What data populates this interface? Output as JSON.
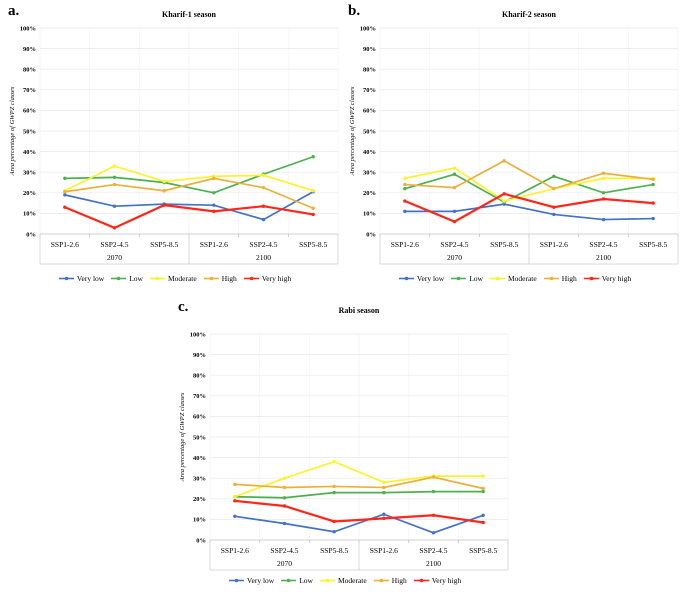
{
  "page": {
    "background": "#ffffff"
  },
  "colors": {
    "very_low": "#4472C4",
    "low": "#4CB050",
    "moderate": "#FFF12B",
    "high": "#E9B03C",
    "very_high": "#FF261A",
    "gridline": "#E8E8E8",
    "axis": "#C0C0C0"
  },
  "chart_data": [
    {
      "type": "line",
      "panel_label": "a.",
      "title": "Kharif-1 season",
      "ylabel": "Area percentage of GWPZ classes",
      "ylim": [
        0,
        100
      ],
      "ytick_step": 10,
      "ytick_suffix": "%",
      "grid": true,
      "legend_position": "bottom",
      "categories": [
        "SSP1-2.6",
        "SSP2-4.5",
        "SSP5-8.5",
        "SSP1-2.6",
        "SSP2-4.5",
        "SSP5-8.5"
      ],
      "group_labels": [
        "2070",
        "2100"
      ],
      "series": [
        {
          "name": "Very low",
          "color": "#4472C4",
          "values": [
            19,
            13.5,
            14.5,
            14,
            7,
            20.5
          ]
        },
        {
          "name": "Low",
          "color": "#4CB050",
          "values": [
            27,
            27.5,
            25,
            20,
            29,
            37.5
          ]
        },
        {
          "name": "Moderate",
          "color": "#FFF12B",
          "values": [
            21,
            33,
            25.5,
            28,
            28.5,
            21
          ]
        },
        {
          "name": "High",
          "color": "#E9B03C",
          "values": [
            20.5,
            24,
            21,
            27,
            22.5,
            12.5
          ]
        },
        {
          "name": "Very high",
          "color": "#FF261A",
          "values": [
            13,
            3,
            14,
            11,
            13.5,
            9.5
          ]
        }
      ]
    },
    {
      "type": "line",
      "panel_label": "b.",
      "title": "Kharif-2 season",
      "ylabel": "Area percentage of GWPZ classes",
      "ylim": [
        0,
        100
      ],
      "ytick_step": 10,
      "ytick_suffix": "%",
      "grid": true,
      "legend_position": "bottom",
      "categories": [
        "SSP1-2.6",
        "SSP2-4.5",
        "SSP5-8.5",
        "SSP1-2.6",
        "SSP2-4.5",
        "SSP5-8.5"
      ],
      "group_labels": [
        "2070",
        "2100"
      ],
      "series": [
        {
          "name": "Very low",
          "color": "#4472C4",
          "values": [
            11,
            11,
            14.5,
            9.5,
            7,
            7.5
          ]
        },
        {
          "name": "Low",
          "color": "#4CB050",
          "values": [
            22,
            29,
            15.5,
            28,
            20,
            24
          ]
        },
        {
          "name": "Moderate",
          "color": "#FFF12B",
          "values": [
            27,
            32,
            16,
            22,
            27,
            27
          ]
        },
        {
          "name": "High",
          "color": "#E9B03C",
          "values": [
            24,
            22.5,
            35.5,
            22,
            29.5,
            26.5
          ]
        },
        {
          "name": "Very high",
          "color": "#FF261A",
          "values": [
            16,
            6,
            19.5,
            13,
            17,
            15
          ]
        }
      ]
    },
    {
      "type": "line",
      "panel_label": "c.",
      "title": "Rabi season",
      "ylabel": "Area percentage of GWPZ classes",
      "ylim": [
        0,
        100
      ],
      "ytick_step": 10,
      "ytick_suffix": "%",
      "grid": true,
      "legend_position": "bottom",
      "categories": [
        "SSP1-2.6",
        "SSP2-4.5",
        "SSP5-8.5",
        "SSP1-2.6",
        "SSP2-4.5",
        "SSP5-8.5"
      ],
      "group_labels": [
        "2070",
        "2100"
      ],
      "series": [
        {
          "name": "Very low",
          "color": "#4472C4",
          "values": [
            11.5,
            8,
            4,
            12.5,
            3.5,
            12
          ]
        },
        {
          "name": "Low",
          "color": "#4CB050",
          "values": [
            21,
            20.5,
            23,
            23,
            23.5,
            23.5
          ]
        },
        {
          "name": "Moderate",
          "color": "#FFF12B",
          "values": [
            21,
            30,
            38,
            28,
            31,
            31
          ]
        },
        {
          "name": "High",
          "color": "#E9B03C",
          "values": [
            27,
            25.5,
            26,
            25.5,
            30.5,
            25
          ]
        },
        {
          "name": "Very high",
          "color": "#FF261A",
          "values": [
            19,
            16.5,
            9,
            10.5,
            12,
            8.5
          ]
        }
      ]
    }
  ]
}
